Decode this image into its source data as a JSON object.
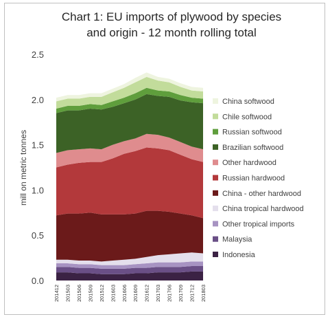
{
  "chart_data": {
    "type": "area",
    "stacked": true,
    "title_line1": "Chart 1: EU imports of plywood by species",
    "title_line2": "and origin - 12 month rolling total",
    "ylabel": "mill on metric tonnes",
    "xlabel": "",
    "ylim": [
      0,
      2.5
    ],
    "yticks": [
      "0.0",
      "0.5",
      "1.0",
      "1.5",
      "2.0",
      "2.5"
    ],
    "grid": false,
    "legend_position": "right",
    "x": [
      "201412",
      "201503",
      "201506",
      "201509",
      "201512",
      "201603",
      "201606",
      "201609",
      "201612",
      "201703",
      "201706",
      "201709",
      "201712",
      "201803"
    ],
    "series": [
      {
        "name": "Indonesia",
        "color": "#3b2244",
        "values": [
          0.09,
          0.09,
          0.08,
          0.08,
          0.07,
          0.07,
          0.07,
          0.08,
          0.08,
          0.09,
          0.09,
          0.09,
          0.1,
          0.1
        ]
      },
      {
        "name": "Malaysia",
        "color": "#6a4f86",
        "values": [
          0.06,
          0.06,
          0.06,
          0.06,
          0.06,
          0.06,
          0.06,
          0.06,
          0.06,
          0.06,
          0.06,
          0.06,
          0.06,
          0.06
        ]
      },
      {
        "name": "Other tropical imports",
        "color": "#a793c2",
        "values": [
          0.04,
          0.04,
          0.04,
          0.04,
          0.04,
          0.04,
          0.04,
          0.04,
          0.05,
          0.05,
          0.05,
          0.05,
          0.05,
          0.05
        ]
      },
      {
        "name": "China   tropical hardwood",
        "color": "#e4dfec",
        "values": [
          0.04,
          0.04,
          0.04,
          0.04,
          0.04,
          0.05,
          0.06,
          0.06,
          0.07,
          0.08,
          0.09,
          0.1,
          0.1,
          0.09
        ]
      },
      {
        "name": "China - other hardwood",
        "color": "#6b1a1a",
        "values": [
          0.49,
          0.51,
          0.52,
          0.53,
          0.52,
          0.51,
          0.5,
          0.5,
          0.51,
          0.49,
          0.47,
          0.44,
          0.41,
          0.39
        ]
      },
      {
        "name": "Russian hardwood",
        "color": "#b3393b",
        "values": [
          0.53,
          0.54,
          0.56,
          0.56,
          0.58,
          0.62,
          0.67,
          0.69,
          0.7,
          0.69,
          0.68,
          0.65,
          0.62,
          0.62
        ]
      },
      {
        "name": "Other hardwood",
        "color": "#df8c8e",
        "values": [
          0.16,
          0.16,
          0.15,
          0.15,
          0.14,
          0.15,
          0.14,
          0.14,
          0.15,
          0.15,
          0.14,
          0.14,
          0.14,
          0.14
        ]
      },
      {
        "name": "Brazilian softwood",
        "color": "#3c6226",
        "values": [
          0.44,
          0.44,
          0.43,
          0.44,
          0.44,
          0.42,
          0.42,
          0.43,
          0.44,
          0.43,
          0.45,
          0.46,
          0.49,
          0.51
        ]
      },
      {
        "name": "Russian softwood",
        "color": "#5f9e3c",
        "values": [
          0.05,
          0.05,
          0.05,
          0.05,
          0.05,
          0.06,
          0.06,
          0.07,
          0.07,
          0.06,
          0.06,
          0.06,
          0.05,
          0.05
        ]
      },
      {
        "name": "Chile softwood",
        "color": "#c2dc9b",
        "values": [
          0.08,
          0.08,
          0.08,
          0.08,
          0.09,
          0.1,
          0.11,
          0.12,
          0.12,
          0.11,
          0.1,
          0.09,
          0.08,
          0.08
        ]
      },
      {
        "name": "China softwood",
        "color": "#eef4df",
        "values": [
          0.04,
          0.04,
          0.04,
          0.04,
          0.04,
          0.04,
          0.04,
          0.05,
          0.05,
          0.04,
          0.04,
          0.04,
          0.04,
          0.04
        ]
      }
    ]
  }
}
